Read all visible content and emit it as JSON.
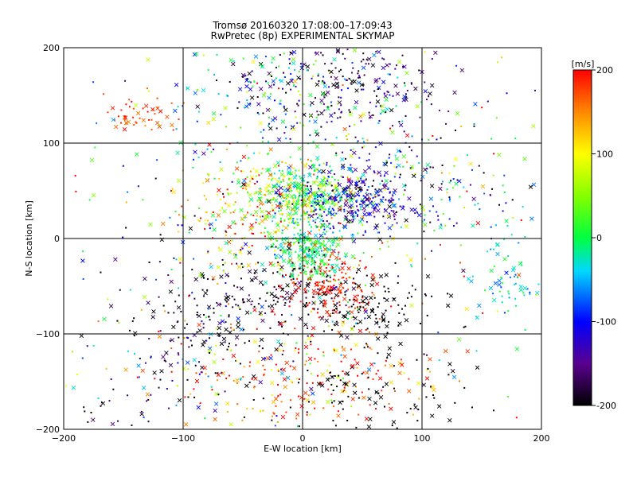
{
  "header": {
    "title": "Tromsø 20160320 17:08:00–17:09:43",
    "subtitle": "RwPretec (8p) EXPERIMENTAL SKYMAP"
  },
  "colorbar": {
    "label": "[m/s]",
    "ticks": [
      "200",
      "100",
      "0",
      "-100",
      "-200"
    ],
    "range": [
      -200,
      200
    ]
  },
  "chart_data": {
    "type": "scatter",
    "title": "Tromsø 20160320 17:08:00–17:09:43",
    "subtitle": "RwPretec (8p) EXPERIMENTAL SKYMAP",
    "xlabel": "E-W location [km]",
    "ylabel": "N-S location [km]",
    "xlim": [
      -200,
      200
    ],
    "ylim": [
      -200,
      200
    ],
    "x_ticks": [
      "-200",
      "-100",
      "0",
      "100",
      "200"
    ],
    "y_ticks": [
      "-200",
      "-100",
      "0",
      "100",
      "200"
    ],
    "grid": true,
    "color_scale": "velocity [m/s], -200 (black) to 200 (red)",
    "clusters": [
      {
        "cx": 0,
        "cy": 45,
        "sx": 25,
        "sy": 18,
        "n": 420,
        "v": 20,
        "vs": 50
      },
      {
        "cx": 45,
        "cy": 40,
        "sx": 25,
        "sy": 20,
        "n": 300,
        "v": -120,
        "vs": 40
      },
      {
        "cx": -40,
        "cy": 30,
        "sx": 35,
        "sy": 30,
        "n": 200,
        "v": 130,
        "vs": 60
      },
      {
        "cx": 5,
        "cy": -15,
        "sx": 15,
        "sy": 15,
        "n": 230,
        "v": 0,
        "vs": 30
      },
      {
        "cx": 25,
        "cy": -50,
        "sx": 20,
        "sy": 15,
        "n": 160,
        "v": 190,
        "vs": 15
      },
      {
        "cx": -35,
        "cy": -65,
        "sx": 40,
        "sy": 30,
        "n": 210,
        "v": -190,
        "vs": 15
      },
      {
        "cx": 60,
        "cy": -70,
        "sx": 25,
        "sy": 20,
        "n": 110,
        "v": -200,
        "vs": 5
      },
      {
        "cx": 25,
        "cy": 160,
        "sx": 45,
        "sy": 25,
        "n": 240,
        "v": -170,
        "vs": 40
      },
      {
        "cx": -20,
        "cy": 150,
        "sx": 50,
        "sy": 35,
        "n": 150,
        "v": -20,
        "vs": 50
      },
      {
        "cx": -135,
        "cy": 130,
        "sx": 15,
        "sy": 10,
        "n": 50,
        "v": 180,
        "vs": 20
      },
      {
        "cx": 5,
        "cy": -150,
        "sx": 60,
        "sy": 30,
        "n": 230,
        "v": 170,
        "vs": 50
      },
      {
        "cx": 50,
        "cy": -170,
        "sx": 50,
        "sy": 25,
        "n": 100,
        "v": -200,
        "vs": 5
      },
      {
        "cx": 170,
        "cy": -40,
        "sx": 15,
        "sy": 25,
        "n": 70,
        "v": -30,
        "vs": 30
      },
      {
        "cx": 110,
        "cy": 60,
        "sx": 40,
        "sy": 30,
        "n": 120,
        "v": -80,
        "vs": 100
      },
      {
        "cx": -100,
        "cy": -100,
        "sx": 40,
        "sy": 50,
        "n": 130,
        "v": -150,
        "vs": 80
      },
      {
        "cx": -160,
        "cy": -180,
        "sx": 20,
        "sy": 10,
        "n": 15,
        "v": -180,
        "vs": 20
      },
      {
        "cx": 0,
        "cy": 0,
        "sx": 110,
        "sy": 110,
        "n": 450,
        "v": 0,
        "vs": 130
      }
    ]
  }
}
